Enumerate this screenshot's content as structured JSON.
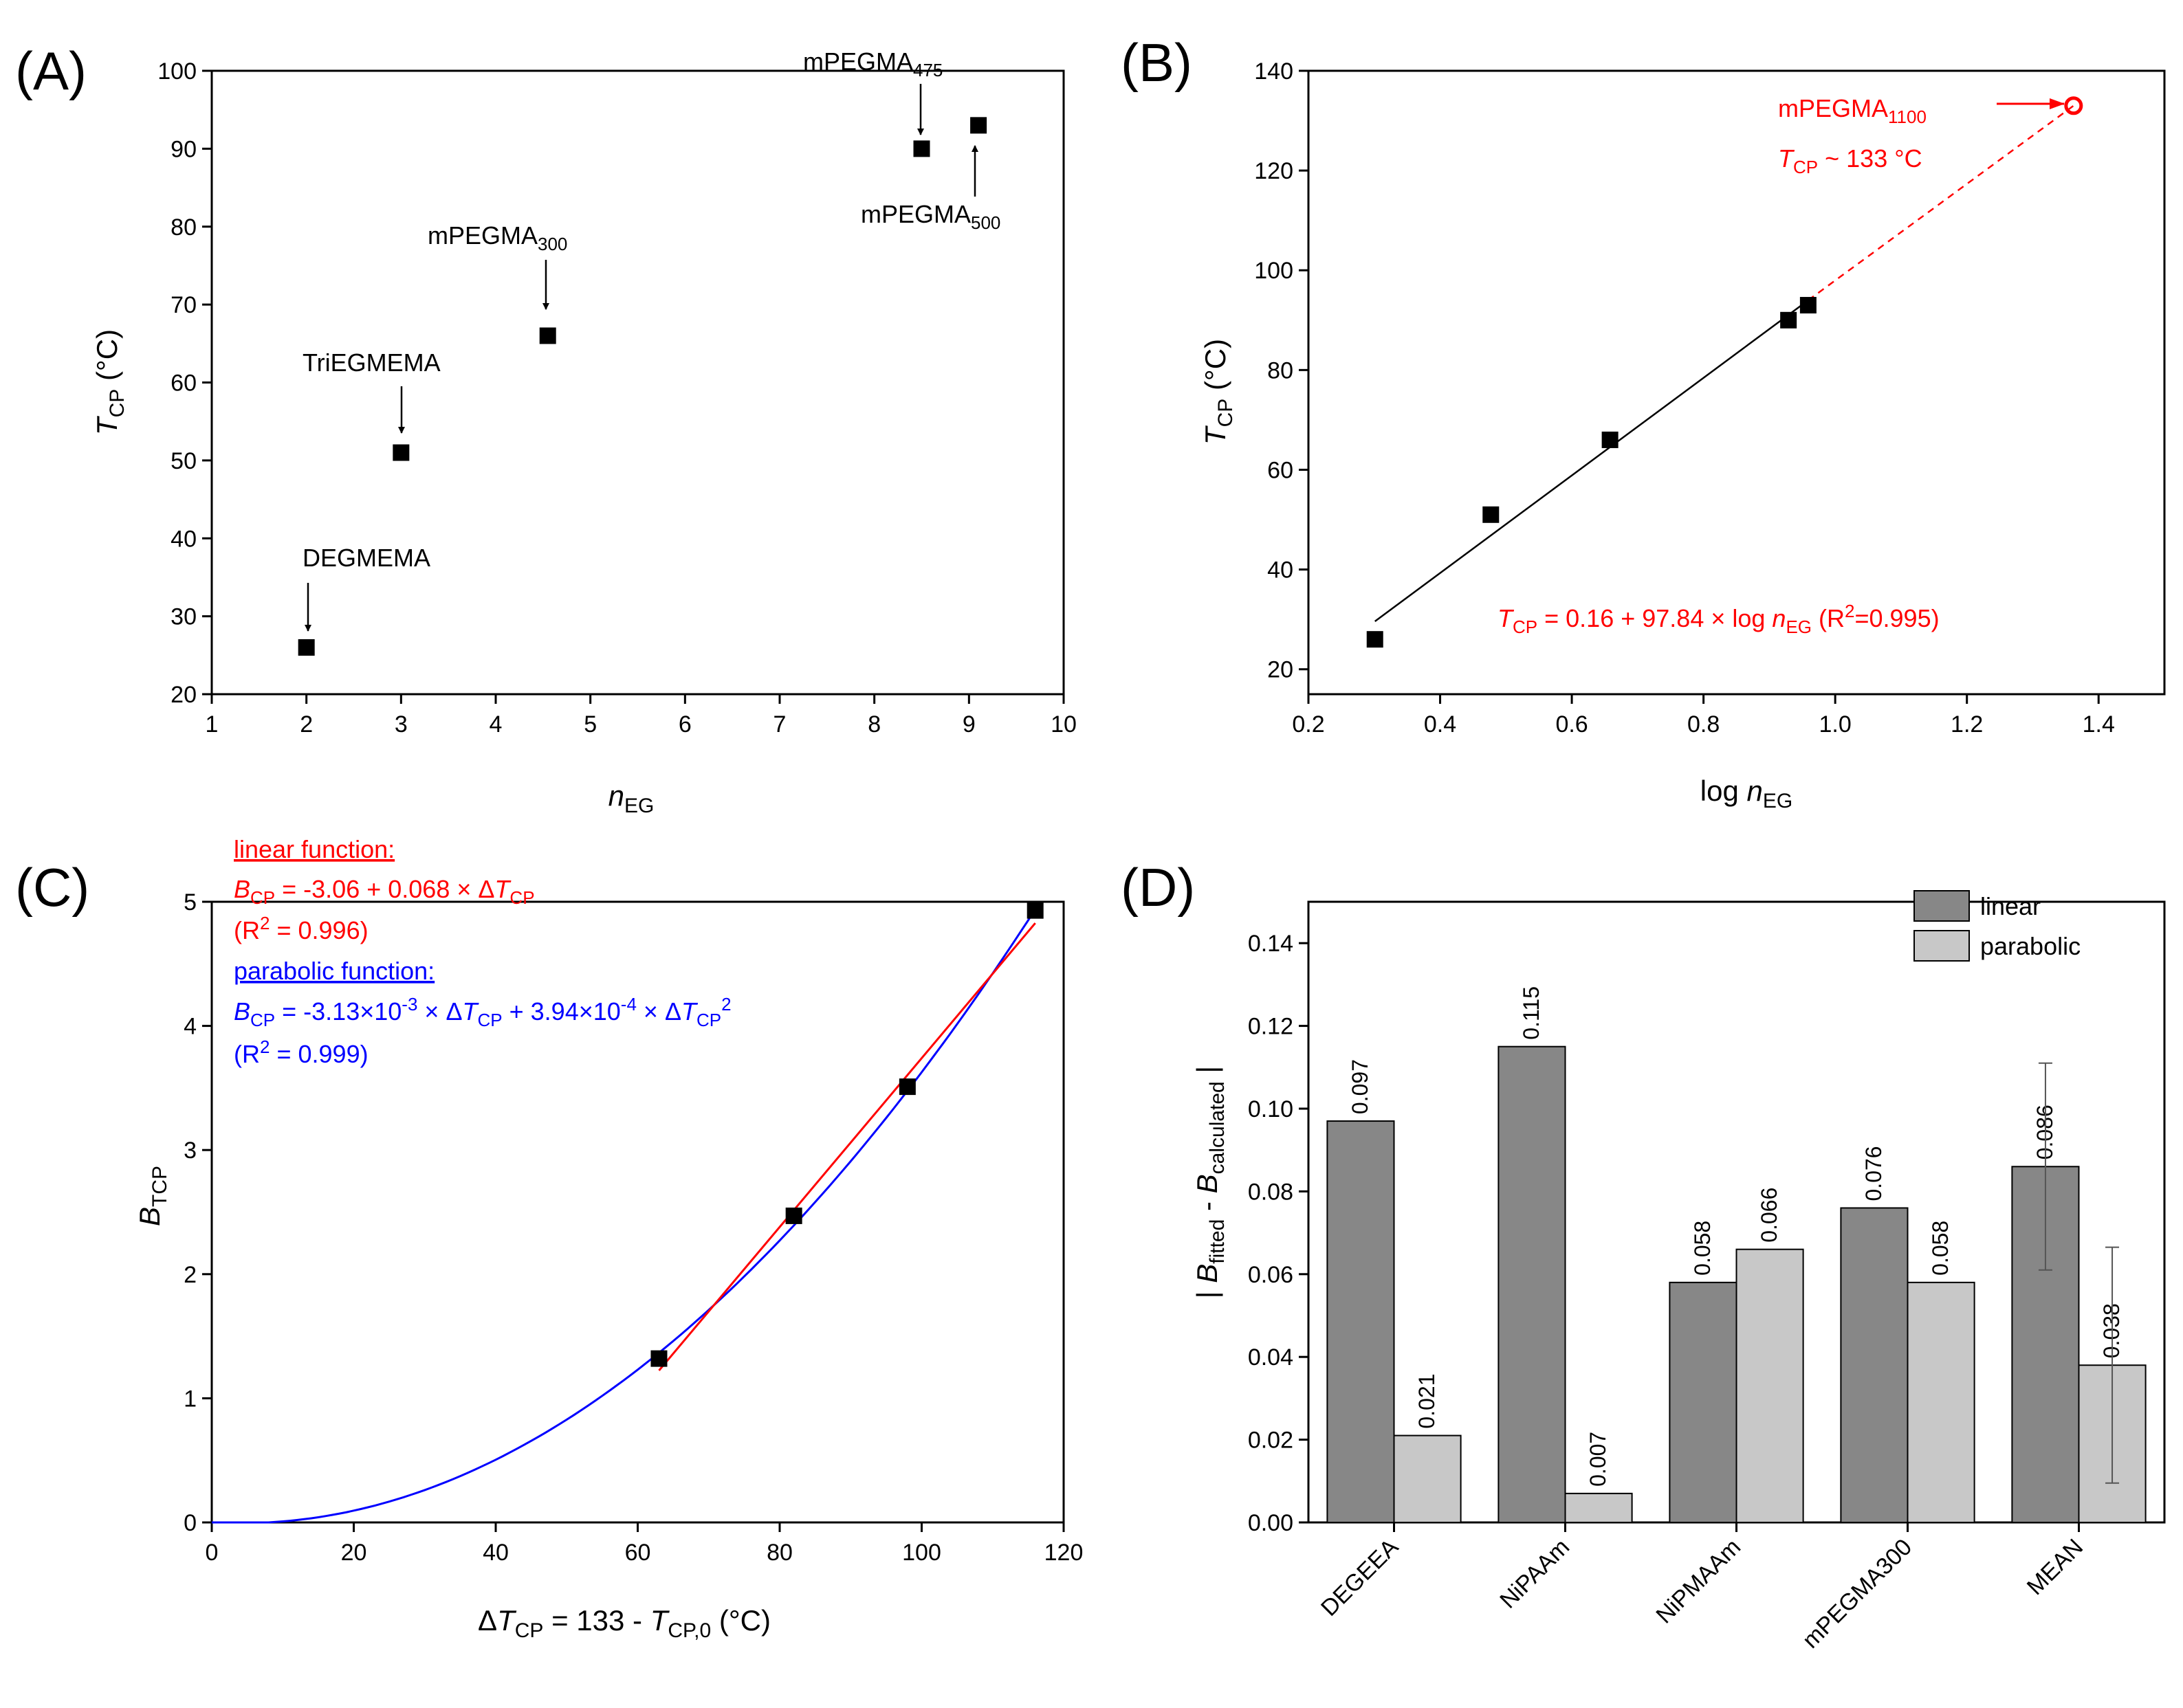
{
  "chart_data": [
    {
      "panel": "A",
      "panel_label": "(A)",
      "type": "scatter",
      "xlabel": {
        "italic": "n",
        "sub": "EG"
      },
      "ylabel": {
        "italic": "T",
        "sub": "CP",
        "rest": " (°C)"
      },
      "xlim": [
        1,
        10
      ],
      "ylim": [
        20,
        100
      ],
      "xticks": [
        1,
        2,
        3,
        4,
        5,
        6,
        7,
        8,
        9,
        10
      ],
      "yticks": [
        20,
        30,
        40,
        50,
        60,
        70,
        80,
        90,
        100
      ],
      "points": [
        {
          "x": 2,
          "y": 26
        },
        {
          "x": 3,
          "y": 51
        },
        {
          "x": 4.55,
          "y": 66
        },
        {
          "x": 8.5,
          "y": 90
        },
        {
          "x": 9.1,
          "y": 93
        }
      ],
      "annotations": [
        {
          "main": "DEGMEMA",
          "sub": ""
        },
        {
          "main": "TriEGMEMA",
          "sub": ""
        },
        {
          "main": "mPEGMA",
          "sub": "300"
        },
        {
          "main": "mPEGMA",
          "sub": "475"
        },
        {
          "main": "mPEGMA",
          "sub": "500"
        }
      ]
    },
    {
      "panel": "B",
      "panel_label": "(B)",
      "type": "scatter",
      "xlabel": {
        "pre": "log ",
        "italic": "n",
        "sub": "EG"
      },
      "ylabel": {
        "italic": "T",
        "sub": "CP",
        "rest": " (°C)"
      },
      "xlim": [
        0.2,
        1.5
      ],
      "ylim": [
        15,
        140
      ],
      "xticks": [
        0.2,
        0.4,
        0.6,
        0.8,
        1.0,
        1.2,
        1.4
      ],
      "yticks": [
        20,
        40,
        60,
        80,
        100,
        120,
        140
      ],
      "points": [
        {
          "x": 0.301,
          "y": 26
        },
        {
          "x": 0.477,
          "y": 51
        },
        {
          "x": 0.658,
          "y": 66
        },
        {
          "x": 0.929,
          "y": 90
        },
        {
          "x": 0.959,
          "y": 93
        }
      ],
      "fit": {
        "intercept": 0.16,
        "slope": 97.84,
        "x_range": [
          0.301,
          0.959
        ]
      },
      "extrapolation": {
        "x_range": [
          0.959,
          1.362
        ]
      },
      "predicted_point": {
        "x": 1.362,
        "y": 133
      },
      "annotation_line1": {
        "main": "mPEGMA",
        "sub": "1100"
      },
      "annotation_line2": {
        "italic": "T",
        "sub": "CP",
        "rest": " ~ 133 °C"
      },
      "equation": {
        "t": "T",
        "t_sub": "CP",
        "middle": " = 0.16 + 97.84 × log ",
        "n": "n",
        "n_sub": "EG",
        "r_open": " (R",
        "r_sup": "2",
        "r_close": "=0.995)"
      },
      "colors": {
        "fit": "#000000",
        "highlight": "#ff0000"
      }
    },
    {
      "panel": "C",
      "panel_label": "(C)",
      "type": "line",
      "xlabel": {
        "pre": "Δ",
        "italic": "T",
        "sub": "CP",
        "mid": " = 133 - ",
        "italic2": "T",
        "sub2": "CP,0",
        "rest": " (°C)"
      },
      "ylabel": {
        "italic": "B",
        "sub": "TCP"
      },
      "xlim": [
        0,
        120
      ],
      "ylim": [
        0,
        5
      ],
      "xticks": [
        0,
        20,
        40,
        60,
        80,
        100,
        120
      ],
      "yticks": [
        0,
        1,
        2,
        3,
        4,
        5
      ],
      "points": [
        {
          "x": 63,
          "y": 1.32
        },
        {
          "x": 82,
          "y": 2.47
        },
        {
          "x": 98,
          "y": 3.51
        },
        {
          "x": 116,
          "y": 4.93
        }
      ],
      "series": [
        {
          "name": "linear function",
          "color": "#ff0000",
          "model": "linear",
          "intercept": -3.06,
          "slope": 0.068,
          "x_range": [
            63,
            116
          ]
        },
        {
          "name": "parabolic function",
          "color": "#0000ff",
          "model": "parabolic",
          "a1": -0.00313,
          "a2": 0.000394,
          "x_range": [
            0,
            116
          ]
        }
      ],
      "legend_text": {
        "linear_title": "linear function:",
        "linear_eq": {
          "b": "B",
          "b_sub": "CP",
          "mid": " = -3.06 + 0.068 × Δ",
          "t": "T",
          "t_sub": "CP"
        },
        "linear_r": {
          "open": "(R",
          "sup": "2",
          "close": " = 0.996)"
        },
        "parabolic_title": "parabolic function:",
        "parabolic_eq": {
          "b": "B",
          "b_sub": "CP",
          "p1": " = -3.13×10",
          "p1_sup": "-3",
          "p2": " ×  Δ",
          "t": "T",
          "t_sub": "CP",
          "p3": " + 3.94×10",
          "p3_sup": "-4",
          "p4": " ×  Δ",
          "t2": "T",
          "t2_sub": "CP",
          "t2_sup": "2"
        },
        "parabolic_r": {
          "open": "(R",
          "sup": "2",
          "close": " = 0.999)"
        }
      }
    },
    {
      "panel": "D",
      "panel_label": "(D)",
      "type": "bar",
      "categories": [
        "DEGEEA",
        "NiPAAm",
        "NiPMAAm",
        "mPEGMA300",
        "MEAN"
      ],
      "ylabel": {
        "pre": "| ",
        "italic": "B",
        "sub": "fitted",
        "mid": " - ",
        "italic2": "B",
        "sub2": "calculated",
        "rest": " |"
      },
      "ylim": [
        0,
        0.15
      ],
      "yticks": [
        "0.00",
        "0.02",
        "0.04",
        "0.06",
        "0.08",
        "0.10",
        "0.12",
        "0.14"
      ],
      "series": [
        {
          "name": "linear",
          "color": "#878787",
          "values": [
            0.097,
            0.115,
            0.058,
            0.076,
            0.086
          ],
          "labels": [
            "0.097",
            "0.115",
            "0.058",
            "0.076",
            "0.086"
          ]
        },
        {
          "name": "parabolic",
          "color": "#c8c8c8",
          "values": [
            0.021,
            0.007,
            0.066,
            0.058,
            0.038
          ],
          "labels": [
            "0.021",
            "0.007",
            "0.066",
            "0.058",
            "0.038"
          ]
        }
      ],
      "error_bars": [
        {
          "category": "MEAN",
          "series": "linear",
          "low": 0.061,
          "high": 0.111
        },
        {
          "category": "MEAN",
          "series": "parabolic",
          "low": 0.0095,
          "high": 0.0665
        }
      ],
      "legend": [
        "linear",
        "parabolic"
      ]
    }
  ]
}
